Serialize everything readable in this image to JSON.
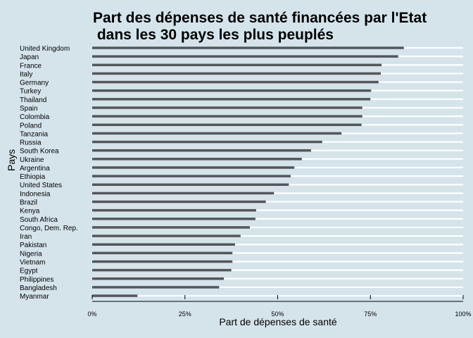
{
  "chart_data": {
    "type": "bar",
    "orientation": "horizontal",
    "title_lines": [
      "Part des dépenses de santé financées par l'Etat",
      " dans les 30 pays les plus peuplés"
    ],
    "xlabel": "Part de dépenses de santé",
    "ylabel": "Pays",
    "xlim": [
      0,
      1
    ],
    "x_ticks": [
      0,
      0.25,
      0.5,
      0.75,
      1
    ],
    "x_tick_labels": [
      "0%",
      "25%",
      "50%",
      "75%",
      "100%"
    ],
    "grid": true,
    "colors": {
      "background": "#d5e4eb",
      "bar": "#55565a",
      "grid": "#ffffff"
    },
    "categories": [
      "United Kingdom",
      "Japan",
      "France",
      "Italy",
      "Germany",
      "Turkey",
      "Thailand",
      "Spain",
      "Colombia",
      "Poland",
      "Tanzania",
      "Russia",
      "South Korea",
      "Ukraine",
      "Argentina",
      "Ethiopia",
      "United States",
      "Indonesia",
      "Brazil",
      "Kenya",
      "South Africa",
      "Congo, Dem. Rep.",
      "Iran",
      "Pakistan",
      "Nigeria",
      "Vietnam",
      "Egypt",
      "Philippines",
      "Bangladesh",
      "Myanmar"
    ],
    "values": [
      0.84,
      0.825,
      0.78,
      0.778,
      0.772,
      0.752,
      0.75,
      0.728,
      0.728,
      0.726,
      0.672,
      0.62,
      0.59,
      0.565,
      0.545,
      0.535,
      0.53,
      0.49,
      0.468,
      0.442,
      0.44,
      0.425,
      0.4,
      0.385,
      0.378,
      0.378,
      0.375,
      0.355,
      0.342,
      0.122
    ]
  }
}
